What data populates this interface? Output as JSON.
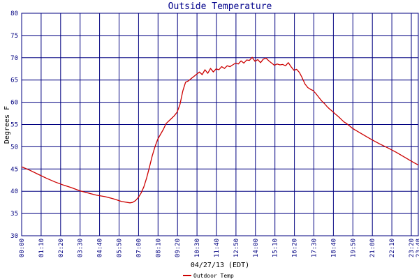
{
  "chart_data": {
    "type": "line",
    "title": "Outside Temperature",
    "xlabel": "04/27/13 (EDT)",
    "ylabel": "Degrees F",
    "ylim": [
      30,
      80
    ],
    "y_ticks": [
      30,
      35,
      40,
      45,
      50,
      55,
      60,
      65,
      70,
      75,
      80
    ],
    "x_tick_labels": [
      "00:00",
      "01:10",
      "02:20",
      "03:30",
      "04:40",
      "05:50",
      "07:00",
      "08:10",
      "09:20",
      "10:30",
      "11:40",
      "12:50",
      "14:00",
      "15:10",
      "16:20",
      "17:30",
      "18:40",
      "19:50",
      "21:00",
      "22:10",
      "23:20",
      "23:48"
    ],
    "grid": true,
    "legend_position": "bottom-left",
    "colors": {
      "series": "#cc0000",
      "grid": "#000080",
      "title": "#00008b"
    },
    "series": [
      {
        "name": "Outdoor Temp",
        "x": [
          0,
          30,
          60,
          90,
          120,
          150,
          180,
          210,
          240,
          270,
          300,
          330,
          360,
          390,
          400,
          410,
          420,
          430,
          440,
          450,
          460,
          470,
          480,
          490,
          500,
          510,
          520,
          530,
          540,
          550,
          560,
          570,
          580,
          590,
          600,
          610,
          620,
          630,
          640,
          650,
          660,
          670,
          680,
          690,
          700,
          710,
          720,
          730,
          740,
          750,
          760,
          770,
          780,
          790,
          800,
          810,
          820,
          830,
          840,
          850,
          860,
          870,
          880,
          890,
          900,
          910,
          920,
          930,
          940,
          950,
          960,
          970,
          980,
          990,
          1000,
          1010,
          1020,
          1030,
          1040,
          1050,
          1060,
          1070,
          1080,
          1090,
          1100,
          1110,
          1120,
          1130,
          1140,
          1150,
          1160,
          1170,
          1180,
          1190,
          1200,
          1230,
          1260,
          1290,
          1320,
          1350,
          1380,
          1410,
          1428
        ],
        "y": [
          45.5,
          44.7,
          43.8,
          42.9,
          42.1,
          41.4,
          40.8,
          40.1,
          39.6,
          39.1,
          38.8,
          38.3,
          37.7,
          37.4,
          37.5,
          37.9,
          38.6,
          39.6,
          41.0,
          43.0,
          45.4,
          47.9,
          50.0,
          51.7,
          52.8,
          53.9,
          55.2,
          55.8,
          56.4,
          57.0,
          57.8,
          59.5,
          62.5,
          64.5,
          64.8,
          65.3,
          65.8,
          66.3,
          66.8,
          66.2,
          67.3,
          66.5,
          67.6,
          66.8,
          67.5,
          67.3,
          68.0,
          67.6,
          68.2,
          68.0,
          68.4,
          68.8,
          68.6,
          69.3,
          68.8,
          69.5,
          69.4,
          70.1,
          69.2,
          69.6,
          68.9,
          69.7,
          69.9,
          69.3,
          68.8,
          68.3,
          68.6,
          68.4,
          68.5,
          68.2,
          68.9,
          68.0,
          67.2,
          67.4,
          66.7,
          65.5,
          64.1,
          63.3,
          62.9,
          62.6,
          61.9,
          61.1,
          60.3,
          59.7,
          59.0,
          58.4,
          57.9,
          57.3,
          56.8,
          56.2,
          55.6,
          55.2,
          54.7,
          54.2,
          53.8,
          52.7,
          51.6,
          50.6,
          49.7,
          48.7,
          47.6,
          46.5,
          45.9
        ]
      }
    ]
  }
}
